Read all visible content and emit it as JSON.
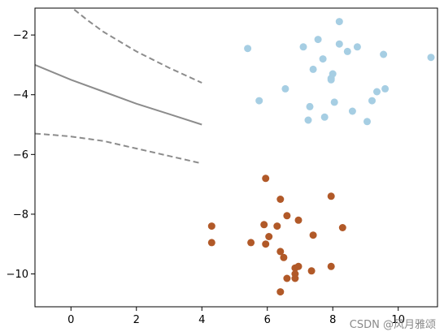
{
  "watermark": "CSDN @风月雅颂",
  "chart_data": {
    "type": "scatter",
    "title": "",
    "xlabel": "",
    "ylabel": "",
    "xlim": [
      -1.1,
      11.2
    ],
    "ylim": [
      -11.1,
      -1.1
    ],
    "x_ticks": [
      0,
      2,
      4,
      6,
      8,
      10
    ],
    "y_ticks": [
      -2,
      -4,
      -6,
      -8,
      -10
    ],
    "tick_labels_x": [
      "0",
      "2",
      "4",
      "6",
      "8",
      "10"
    ],
    "tick_labels_y": [
      "−2",
      "−4",
      "−6",
      "−8",
      "−10"
    ],
    "grid": false,
    "series": [
      {
        "color": "#a6cee3",
        "points": [
          [
            8.2,
            -1.55
          ],
          [
            5.4,
            -2.45
          ],
          [
            7.1,
            -2.4
          ],
          [
            7.55,
            -2.15
          ],
          [
            7.7,
            -2.8
          ],
          [
            8.2,
            -2.3
          ],
          [
            8.45,
            -2.55
          ],
          [
            8.75,
            -2.4
          ],
          [
            9.55,
            -2.65
          ],
          [
            11.0,
            -2.75
          ],
          [
            7.4,
            -3.15
          ],
          [
            8.0,
            -3.3
          ],
          [
            7.95,
            -3.5
          ],
          [
            6.55,
            -3.8
          ],
          [
            5.75,
            -4.2
          ],
          [
            7.3,
            -4.4
          ],
          [
            8.05,
            -4.25
          ],
          [
            8.6,
            -4.55
          ],
          [
            9.2,
            -4.2
          ],
          [
            9.35,
            -3.9
          ],
          [
            9.6,
            -3.8
          ],
          [
            7.75,
            -4.75
          ],
          [
            7.25,
            -4.85
          ],
          [
            9.05,
            -4.9
          ],
          [
            7.95,
            -3.45
          ]
        ]
      },
      {
        "color": "#b15928",
        "points": [
          [
            5.95,
            -6.8
          ],
          [
            6.4,
            -7.5
          ],
          [
            7.95,
            -7.4
          ],
          [
            6.6,
            -8.05
          ],
          [
            6.95,
            -8.2
          ],
          [
            4.3,
            -8.4
          ],
          [
            5.9,
            -8.35
          ],
          [
            6.3,
            -8.4
          ],
          [
            8.3,
            -8.45
          ],
          [
            6.05,
            -8.75
          ],
          [
            7.4,
            -8.7
          ],
          [
            4.3,
            -8.95
          ],
          [
            5.5,
            -8.95
          ],
          [
            5.95,
            -9.0
          ],
          [
            6.4,
            -9.25
          ],
          [
            6.5,
            -9.45
          ],
          [
            6.85,
            -9.8
          ],
          [
            6.95,
            -9.75
          ],
          [
            7.95,
            -9.75
          ],
          [
            6.85,
            -10.0
          ],
          [
            7.35,
            -9.9
          ],
          [
            6.6,
            -10.15
          ],
          [
            6.85,
            -10.15
          ],
          [
            6.4,
            -10.6
          ]
        ]
      }
    ],
    "lines": [
      {
        "style": "solid",
        "points": [
          [
            -1.1,
            -3.0
          ],
          [
            0.0,
            -3.5
          ],
          [
            1.0,
            -3.9
          ],
          [
            2.0,
            -4.3
          ],
          [
            3.0,
            -4.65
          ],
          [
            4.0,
            -5.0
          ]
        ]
      },
      {
        "style": "dashed",
        "points": [
          [
            0.1,
            -1.15
          ],
          [
            0.5,
            -1.5
          ],
          [
            1.0,
            -1.9
          ],
          [
            2.0,
            -2.55
          ],
          [
            3.0,
            -3.1
          ],
          [
            4.0,
            -3.6
          ]
        ]
      },
      {
        "style": "dashed",
        "points": [
          [
            -1.1,
            -5.3
          ],
          [
            -0.5,
            -5.35
          ],
          [
            0.0,
            -5.4
          ],
          [
            1.0,
            -5.55
          ],
          [
            2.0,
            -5.8
          ],
          [
            3.0,
            -6.05
          ],
          [
            4.0,
            -6.3
          ]
        ]
      }
    ]
  }
}
